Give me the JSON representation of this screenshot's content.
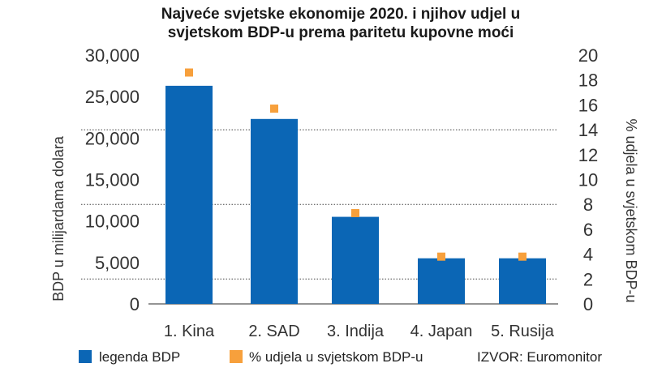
{
  "chart_data": {
    "type": "bar",
    "title_line1": "Najveće svjetske ekonomije 2020. i njihov udjel u",
    "title_line2": "svjetskom BDP-u prema paritetu kupovne moći",
    "categories": [
      "1. Kina",
      "2. SAD",
      "3. Indija",
      "4. Japan",
      "5. Rusija"
    ],
    "series": [
      {
        "name": "legenda BDP",
        "axis": "left",
        "values": [
          26300,
          22300,
          10500,
          5500,
          5500
        ],
        "color": "#0b66b5"
      },
      {
        "name": "% udjela u svjetskom BDP-u",
        "axis": "right",
        "values": [
          18.6,
          15.7,
          7.3,
          3.8,
          3.8
        ],
        "color": "#f7a03c"
      }
    ],
    "y_left": {
      "label": "BDP u milijardama dolara",
      "ylim": [
        0,
        30000
      ],
      "ticks": [
        0,
        5000,
        10000,
        15000,
        20000,
        25000,
        30000
      ],
      "tick_labels": [
        "0",
        "5,000",
        "10,000",
        "15,000",
        "20,000",
        "25,000",
        "30,000"
      ]
    },
    "y_right": {
      "label": "% udjela u svjetskom BDP-u",
      "ylim": [
        0,
        20
      ],
      "ticks": [
        0,
        2,
        4,
        6,
        8,
        10,
        12,
        14,
        16,
        18,
        20
      ],
      "tick_labels": [
        "0",
        "2",
        "4",
        "6",
        "8",
        "10",
        "12",
        "14",
        "16",
        "18",
        "20"
      ]
    },
    "gridlines_right": [
      2,
      8,
      14
    ],
    "legend_position": "bottom",
    "source": "IZVOR: Euromonitor"
  }
}
